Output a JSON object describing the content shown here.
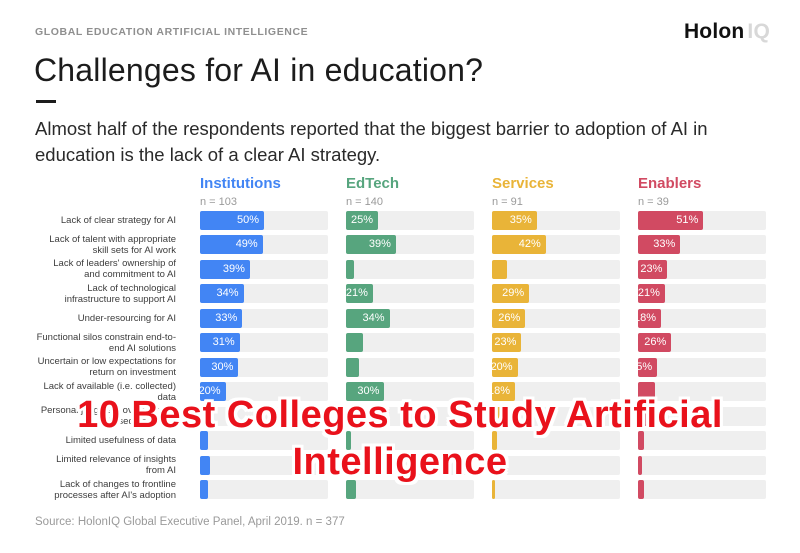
{
  "header": {
    "eyebrow": "GLOBAL EDUCATION ARTIFICIAL INTELLIGENCE",
    "logo_primary": "Holon",
    "logo_secondary": "IQ",
    "title": "Challenges for AI in education?",
    "subtitle": "Almost half of the respondents reported that the biggest barrier to adoption of AI in education is the lack of a clear AI strategy."
  },
  "overlay": {
    "line1": "10 Best Colleges to Study Artificial",
    "line2": "Intelligence",
    "color": "#e9111b"
  },
  "source": "Source: HolonIQ Global Executive Panel, April 2019. n = 377",
  "chart_data": {
    "type": "bar",
    "orientation": "horizontal",
    "value_suffix": "%",
    "xlim": [
      0,
      100
    ],
    "track_color": "#efefef",
    "groups": [
      {
        "name": "Institutions",
        "n_label": "n = 103",
        "color": "#4285f4"
      },
      {
        "name": "EdTech",
        "n_label": "n = 140",
        "color": "#57a57e"
      },
      {
        "name": "Services",
        "n_label": "n = 91",
        "color": "#e9b438"
      },
      {
        "name": "Enablers",
        "n_label": "n = 39",
        "color": "#d14a62"
      }
    ],
    "categories": [
      "Lack of clear strategy for AI",
      "Lack of talent with appropriate skill sets for AI work",
      "Lack of leaders' ownership of and commitment to AI",
      "Lack of technological infrastructure to support AI",
      "Under-resourcing for AI",
      "Functional silos constrain end-to-end AI solutions",
      "Uncertain or low expectations for return on investment",
      "Lack of available (i.e. collected) data",
      "Personal judgment overrides AI-based decisions",
      "Limited usefulness of data",
      "Limited relevance of insights from AI",
      "Lack of changes to frontline processes after AI's adoption"
    ],
    "series": [
      {
        "name": "Institutions",
        "values": [
          50,
          49,
          39,
          34,
          33,
          31,
          30,
          20,
          10,
          6,
          8,
          6
        ]
      },
      {
        "name": "EdTech",
        "values": [
          25,
          39,
          6,
          21,
          34,
          13,
          10,
          30,
          9,
          4,
          9,
          8
        ]
      },
      {
        "name": "Services",
        "values": [
          35,
          42,
          12,
          29,
          26,
          23,
          20,
          18,
          11,
          4,
          3,
          2
        ]
      },
      {
        "name": "Enablers",
        "values": [
          51,
          33,
          23,
          21,
          18,
          26,
          15,
          13,
          13,
          5,
          3,
          5
        ]
      }
    ]
  }
}
